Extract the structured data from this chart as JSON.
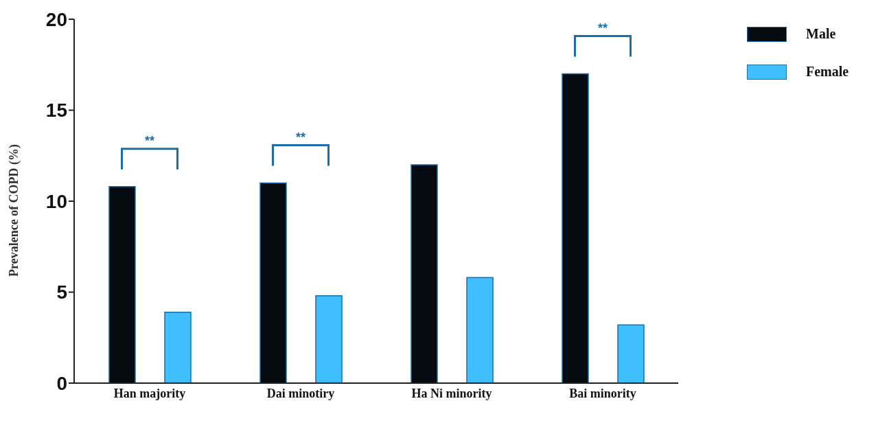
{
  "chart_data": {
    "type": "bar",
    "ylabel": "Prevalence of COPD (%)",
    "categories": [
      "Han majority",
      "Dai minotiry",
      "Ha Ni minority",
      "Bai minority"
    ],
    "series": [
      {
        "name": "Male",
        "color": "#050a10",
        "values": [
          10.8,
          11.0,
          12.0,
          17.0
        ]
      },
      {
        "name": "Female",
        "color": "#40bfff",
        "values": [
          3.9,
          4.8,
          5.8,
          3.2
        ]
      }
    ],
    "ylim": [
      0,
      20
    ],
    "yticks": [
      0,
      5,
      10,
      15,
      20
    ],
    "legend": "top right",
    "annotations": [
      "**",
      "**",
      "**"
    ]
  }
}
